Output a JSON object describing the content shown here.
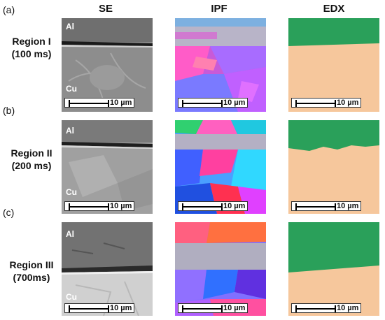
{
  "columns": [
    "SE",
    "IPF",
    "EDX"
  ],
  "panels": [
    {
      "tag": "(a)",
      "region": "Region I",
      "time": "(100 ms)"
    },
    {
      "tag": "(b)",
      "region": "Region II",
      "time": "(200 ms)"
    },
    {
      "tag": "(c)",
      "region": "Region III",
      "time": "(700ms)"
    }
  ],
  "layer_labels": {
    "top": "Al",
    "bottom": "Cu"
  },
  "scale_bar": "10 µm",
  "colors": {
    "edx_al": "#2aa05a",
    "edx_cu": "#f6c79c",
    "sem_al": "#7a7a7a",
    "sem_cu": "#9a9a9a"
  }
}
